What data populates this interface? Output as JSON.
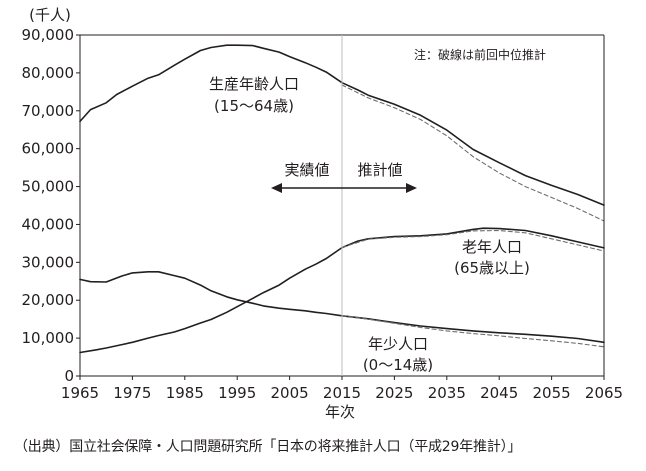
{
  "chart_data": {
    "type": "line",
    "unit_label": "(千人)",
    "xlabel": "年次",
    "ylabel": "",
    "xlim": [
      1965,
      2065
    ],
    "ylim": [
      0,
      90000
    ],
    "x_ticks": [
      "1965",
      "1975",
      "1985",
      "1995",
      "2005",
      "2015",
      "2025",
      "2035",
      "2045",
      "2055",
      "2065"
    ],
    "y_ticks": [
      "0",
      "10,000",
      "20,000",
      "30,000",
      "40,000",
      "50,000",
      "60,000",
      "70,000",
      "80,000",
      "90,000"
    ],
    "y_tick_values": [
      0,
      10000,
      20000,
      30000,
      40000,
      50000,
      60000,
      70000,
      80000,
      90000
    ],
    "divider_year": 2015,
    "grid": false,
    "note": "注：破線は前回中位推計",
    "period_labels": {
      "actual": "実績値",
      "projection": "推計値"
    },
    "series": [
      {
        "name": "生産年齢人口",
        "name_line2": "(15～64歳)",
        "style": "solid",
        "x": [
          1965,
          1967,
          1970,
          1972,
          1975,
          1978,
          1980,
          1983,
          1985,
          1988,
          1990,
          1993,
          1995,
          1998,
          2000,
          2003,
          2005,
          2008,
          2010,
          2012,
          2015,
          2018,
          2020,
          2025,
          2030,
          2035,
          2040,
          2045,
          2050,
          2055,
          2060,
          2065
        ],
        "y": [
          67200,
          70300,
          72100,
          74300,
          76500,
          78600,
          79500,
          82000,
          83600,
          85900,
          86700,
          87300,
          87300,
          87200,
          86500,
          85500,
          84300,
          82700,
          81500,
          80200,
          77400,
          75500,
          74100,
          71700,
          68800,
          64900,
          59800,
          56300,
          52900,
          50300,
          47900,
          45100
        ]
      },
      {
        "name": "生産年齢人口（前回中位推計）",
        "style": "dashed",
        "x": [
          2015,
          2020,
          2025,
          2030,
          2035,
          2040,
          2045,
          2050,
          2055,
          2060,
          2065
        ],
        "y": [
          76800,
          73400,
          70800,
          67700,
          63400,
          57900,
          53600,
          50000,
          47100,
          44200,
          40900
        ]
      },
      {
        "name": "老年人口",
        "name_line2": "(65歳以上)",
        "style": "solid",
        "x": [
          1965,
          1968,
          1970,
          1973,
          1975,
          1978,
          1980,
          1983,
          1985,
          1988,
          1990,
          1993,
          1995,
          1998,
          2000,
          2003,
          2005,
          2008,
          2010,
          2012,
          2015,
          2018,
          2020,
          2025,
          2030,
          2035,
          2040,
          2042,
          2045,
          2050,
          2055,
          2060,
          2065
        ],
        "y": [
          6200,
          6900,
          7400,
          8300,
          8900,
          10000,
          10700,
          11600,
          12500,
          14000,
          14900,
          16800,
          18300,
          20500,
          22000,
          24000,
          25800,
          28200,
          29500,
          31000,
          33900,
          35600,
          36200,
          36800,
          37000,
          37500,
          38700,
          39000,
          38900,
          38400,
          37000,
          35400,
          33800
        ]
      },
      {
        "name": "老年人口（前回中位推計）",
        "style": "dashed",
        "x": [
          2015,
          2020,
          2025,
          2030,
          2035,
          2040,
          2045,
          2050,
          2055,
          2060,
          2065
        ],
        "y": [
          33950,
          36100,
          36600,
          36800,
          37300,
          38300,
          38400,
          37800,
          36200,
          34600,
          33000
        ]
      },
      {
        "name": "年少人口",
        "name_line2": "(0～14歳)",
        "style": "solid",
        "x": [
          1965,
          1967,
          1970,
          1973,
          1975,
          1978,
          1980,
          1983,
          1985,
          1988,
          1990,
          1993,
          1995,
          1998,
          2000,
          2003,
          2005,
          2008,
          2010,
          2012,
          2015,
          2020,
          2025,
          2030,
          2035,
          2040,
          2045,
          2050,
          2055,
          2060,
          2065
        ],
        "y": [
          25500,
          24900,
          24800,
          26400,
          27200,
          27500,
          27500,
          26500,
          25800,
          24000,
          22500,
          20900,
          20100,
          19200,
          18500,
          17900,
          17600,
          17200,
          16800,
          16500,
          15900,
          15100,
          14100,
          13200,
          12500,
          11900,
          11400,
          11000,
          10500,
          9900,
          8900
        ]
      },
      {
        "name": "年少人口（前回中位推計）",
        "style": "dashed",
        "x": [
          2015,
          2020,
          2025,
          2030,
          2035,
          2040,
          2045,
          2050,
          2055,
          2060,
          2065
        ],
        "y": [
          15950,
          15000,
          13900,
          12800,
          11900,
          11200,
          10600,
          9900,
          9300,
          8600,
          7700
        ]
      }
    ]
  },
  "source_text": "（出典）国立社会保障・人口問題研究所「日本の将来推計人口（平成29年推計）」"
}
